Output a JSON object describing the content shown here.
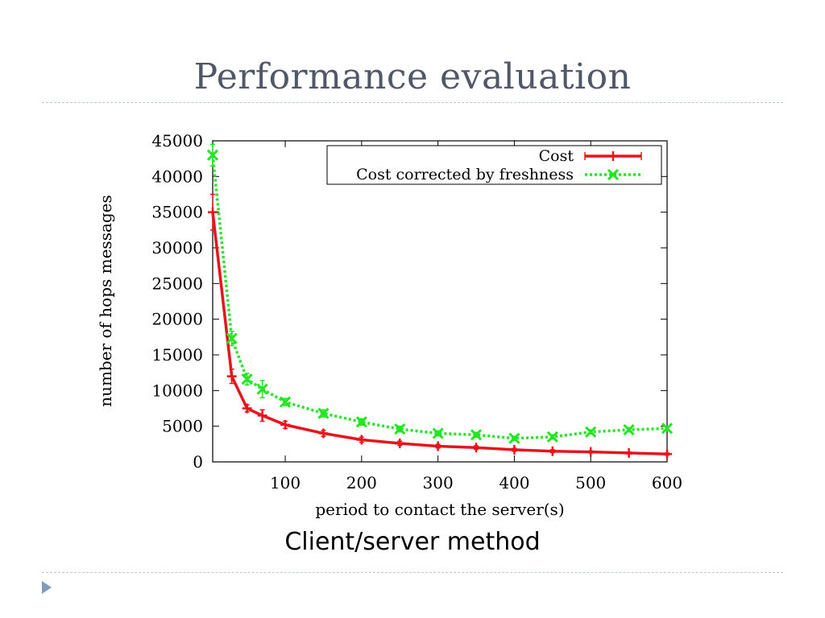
{
  "slide": {
    "title": "Performance evaluation",
    "caption": "Client/server method"
  },
  "colors": {
    "title": "#505868",
    "rule": "#b9c6d3",
    "bullet": "#7f9cc0",
    "cost": "#e8141c",
    "corrected": "#22e622"
  },
  "icons": {
    "bullet": "triangle-bullet-icon"
  },
  "chart_data": {
    "type": "line",
    "title": "",
    "xlabel": "period to contact the server(s)",
    "ylabel": "number of hops messages",
    "xlim": [
      5,
      600
    ],
    "ylim": [
      0,
      45000
    ],
    "xticks": [
      100,
      200,
      300,
      400,
      500,
      600
    ],
    "yticks": [
      0,
      5000,
      10000,
      15000,
      20000,
      25000,
      30000,
      35000,
      40000,
      45000
    ],
    "grid": false,
    "legend_position": "top-right",
    "series": [
      {
        "name": "Cost",
        "color": "#e8141c",
        "style": "solid",
        "marker": "plus",
        "x": [
          5,
          30,
          50,
          70,
          100,
          150,
          200,
          250,
          300,
          350,
          400,
          450,
          500,
          550,
          600
        ],
        "y": [
          35000,
          12000,
          7500,
          6500,
          5200,
          4000,
          3100,
          2600,
          2200,
          2000,
          1700,
          1500,
          1400,
          1250,
          1100
        ],
        "err": [
          2500,
          1000,
          500,
          800,
          500,
          400,
          350,
          300,
          250,
          250,
          200,
          200,
          150,
          150,
          150
        ]
      },
      {
        "name": "Cost corrected by freshness",
        "color": "#22e622",
        "style": "dotted",
        "marker": "cross",
        "x": [
          5,
          30,
          50,
          70,
          100,
          150,
          200,
          250,
          300,
          350,
          400,
          450,
          500,
          550,
          600
        ],
        "y": [
          43000,
          17300,
          11600,
          10200,
          8400,
          6800,
          5600,
          4600,
          4000,
          3800,
          3300,
          3500,
          4200,
          4500,
          4700
        ],
        "err": [
          1500,
          1000,
          800,
          1200,
          500,
          500,
          450,
          400,
          350,
          350,
          300,
          300,
          300,
          300,
          300
        ]
      }
    ]
  }
}
